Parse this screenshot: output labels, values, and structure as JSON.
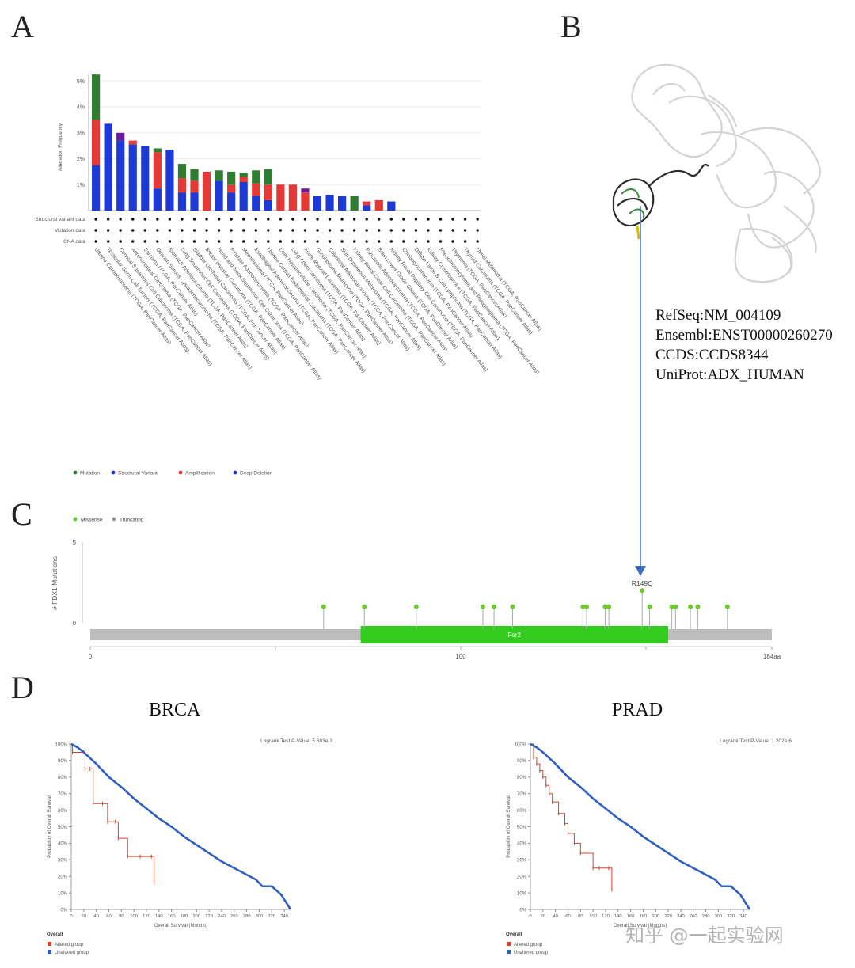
{
  "panels": {
    "a": "A",
    "b": "B",
    "c": "C",
    "d": "D"
  },
  "refs": {
    "refseq": "RefSeq:NM_004109",
    "ensembl": "Ensembl:ENST00000260270",
    "ccds": "CCDS:CCDS8344",
    "uniprot": "UniProt:ADX_HUMAN"
  },
  "colors": {
    "mutation": "#2e7d32",
    "structural": "#6a1b9a",
    "amplification": "#e53935",
    "deep_deletion": "#1e3ad6",
    "missense": "#6dcc2c",
    "domain": "#33cc1e",
    "altered": "#d9432a",
    "unaltered": "#2f5fc0"
  },
  "chart_data": [
    {
      "type": "bar",
      "ylabel": "Alteration Frequency",
      "ylim": [
        0,
        5.5
      ],
      "yticks": [
        "1%",
        "2%",
        "3%",
        "4%",
        "5%"
      ],
      "row_labels": [
        "Structural variant data",
        "Mutation data",
        "CNA data"
      ],
      "legend": [
        "Mutation",
        "Structural Variant",
        "Amplification",
        "Deep Deletion"
      ],
      "categories": [
        "Uterine Carcinosarcoma (TCGA, PanCancer Atlas)",
        "Testicular Germ Cell Tumors (TCGA, PanCancer Atlas)",
        "Cervical Squamous Cell Carcinoma (TCGA, PanCancer Atlas)",
        "Adrenocortical Carcinoma (TCGA, PanCancer Atlas)",
        "Sarcoma (TCGA, PanCancer Atlas)",
        "Ovarian Serous Cystadenocarcinoma (TCGA, PanCancer Atlas)",
        "Stomach Adenocarcinoma (TCGA, PanCancer Atlas)",
        "Lung Squamous Cell Carcinoma (TCGA, PanCancer Atlas)",
        "Bladder Urothelial Carcinoma (TCGA, PanCancer Atlas)",
        "Breast Invasive Carcinoma (TCGA, PanCancer Atlas)",
        "Head and Neck Squamous Cell Carcinoma (TCGA, PanCancer Atlas)",
        "Prostate Adenocarcinoma (TCGA, PanCancer Atlas)",
        "Mesothelioma (TCGA, PanCancer Atlas)",
        "Esophageal Adenocarcinoma (TCGA, PanCancer Atlas)",
        "Uterine Corpus Endometrial Carcinoma (TCGA, PanCancer Atlas)",
        "Liver Hepatocellular Carcinoma (TCGA, PanCancer Atlas)",
        "Lung Adenocarcinoma (TCGA, PanCancer Atlas)",
        "Acute Myeloid Leukemia (TCGA, PanCancer Atlas)",
        "Glioblastoma Multiforme (TCGA, PanCancer Atlas)",
        "Colorectal Adenocarcinoma (TCGA, PanCancer Atlas)",
        "Skin Cutaneous Melanoma (TCGA, PanCancer Atlas)",
        "Kidney Renal Clear Cell Carcinoma (TCGA, PanCancer Atlas)",
        "Pancreatic Adenocarcinoma (TCGA, PanCancer Atlas)",
        "Brain Lower Grade Glioma (TCGA, PanCancer Atlas)",
        "Kidney Renal Papillary Cell Carcinoma (TCGA, PanCancer Atlas)",
        "Cholangiocarcinoma (TCGA, PanCancer Atlas)",
        "Diffuse Large B-Cell Lymphoma (TCGA, PanCancer Atlas)",
        "Kidney Chromophobe (TCGA, PanCancer Atlas)",
        "Pheochromocytoma and Paraganglioma (TCGA, PanCancer Atlas)",
        "Thymoma (TCGA, PanCancer Atlas)",
        "Thyroid Carcinoma (TCGA, PanCancer Atlas)",
        "Uveal Melanoma (TCGA, PanCancer Atlas)"
      ],
      "series": [
        {
          "name": "Deep Deletion",
          "values": [
            1.75,
            3.35,
            2.7,
            2.55,
            2.5,
            0.85,
            2.35,
            0.7,
            0.7,
            0,
            1.15,
            0.7,
            1.1,
            0.55,
            0.4,
            0,
            0,
            0,
            0.55,
            0.6,
            0.55,
            0,
            0.2,
            0,
            0.35,
            0,
            0,
            0,
            0,
            0,
            0,
            0
          ]
        },
        {
          "name": "Amplification",
          "values": [
            1.75,
            0,
            0,
            0.15,
            0,
            1.4,
            0,
            0.55,
            0.45,
            1.5,
            0,
            0.3,
            0.2,
            0.5,
            0.6,
            1.0,
            1.0,
            0.7,
            0,
            0,
            0,
            0,
            0.15,
            0.4,
            0,
            0,
            0,
            0,
            0,
            0,
            0,
            0
          ]
        },
        {
          "name": "Structural Variant",
          "values": [
            0,
            0,
            0.3,
            0,
            0,
            0,
            0,
            0,
            0,
            0,
            0,
            0,
            0,
            0,
            0,
            0,
            0,
            0.15,
            0,
            0,
            0,
            0,
            0,
            0,
            0,
            0,
            0,
            0,
            0,
            0,
            0,
            0
          ]
        },
        {
          "name": "Mutation",
          "values": [
            1.75,
            0,
            0,
            0,
            0,
            0.15,
            0,
            0.55,
            0.45,
            0,
            0.4,
            0.5,
            0.15,
            0.5,
            0.6,
            0,
            0,
            0,
            0,
            0,
            0,
            0.55,
            0,
            0,
            0,
            0,
            0,
            0,
            0,
            0,
            0,
            0
          ]
        }
      ]
    },
    {
      "type": "scatter",
      "subtype": "lollipop",
      "ylabel": "# FDX1 Mutations",
      "ylim": [
        0,
        5
      ],
      "yticks": [
        0,
        5
      ],
      "xlim": [
        0,
        184
      ],
      "xticks": [
        "0",
        "100",
        "184aa"
      ],
      "legend": [
        "Missense",
        "Truncating"
      ],
      "domain": {
        "label": "Fer2",
        "start": 73,
        "end": 156
      },
      "annotation": "R149Q",
      "points": [
        {
          "x": 63,
          "y": 1
        },
        {
          "x": 74,
          "y": 1
        },
        {
          "x": 88,
          "y": 1
        },
        {
          "x": 106,
          "y": 1
        },
        {
          "x": 109,
          "y": 1
        },
        {
          "x": 114,
          "y": 1
        },
        {
          "x": 133,
          "y": 1
        },
        {
          "x": 134,
          "y": 1
        },
        {
          "x": 139,
          "y": 1
        },
        {
          "x": 140,
          "y": 1
        },
        {
          "x": 149,
          "y": 2
        },
        {
          "x": 151,
          "y": 1
        },
        {
          "x": 157,
          "y": 1
        },
        {
          "x": 158,
          "y": 1
        },
        {
          "x": 162,
          "y": 1
        },
        {
          "x": 164,
          "y": 1
        },
        {
          "x": 172,
          "y": 1
        }
      ]
    },
    {
      "type": "line",
      "subtype": "kaplan-meier",
      "title": "BRCA",
      "pvalue": "Logrank Test P-Value: 5.683e-3",
      "xlabel": "Overall Survival (Months)",
      "ylabel": "Probability of Overall Survival",
      "xticks": [
        0,
        20,
        40,
        60,
        80,
        100,
        120,
        140,
        160,
        180,
        200,
        220,
        240,
        260,
        280,
        300,
        320,
        340
      ],
      "yticks": [
        "0%",
        "10%",
        "20%",
        "30%",
        "40%",
        "50%",
        "60%",
        "70%",
        "80%",
        "90%",
        "100%"
      ],
      "xlim": [
        0,
        350
      ],
      "legend_title": "Overall",
      "series": [
        {
          "name": "Altered group",
          "x": [
            0,
            2,
            20,
            22,
            30,
            35,
            50,
            58,
            70,
            75,
            90,
            110,
            128,
            132
          ],
          "y": [
            100,
            95,
            95,
            85,
            85,
            64,
            64,
            53,
            53,
            43,
            32,
            32,
            32,
            16
          ]
        },
        {
          "name": "Unaltered group",
          "x": [
            0,
            10,
            20,
            40,
            60,
            80,
            100,
            120,
            140,
            160,
            180,
            200,
            220,
            240,
            260,
            280,
            295,
            305,
            320,
            335,
            340,
            350
          ],
          "y": [
            100,
            98,
            95,
            88,
            80,
            74,
            67,
            61,
            55,
            50,
            44,
            39,
            34,
            29,
            25,
            21,
            18,
            14,
            14,
            9,
            6,
            0
          ]
        }
      ]
    },
    {
      "type": "line",
      "subtype": "kaplan-meier",
      "title": "PRAD",
      "pvalue": "Logrank Test P-Value: 1.202e-6",
      "xlabel": "Overall Survival (Months)",
      "ylabel": "Probability of Overall Survival",
      "xticks": [
        0,
        20,
        40,
        60,
        80,
        100,
        120,
        140,
        160,
        180,
        200,
        220,
        240,
        260,
        280,
        300,
        320,
        340
      ],
      "yticks": [
        "0%",
        "10%",
        "20%",
        "30%",
        "40%",
        "50%",
        "60%",
        "70%",
        "80%",
        "90%",
        "100%"
      ],
      "xlim": [
        0,
        350
      ],
      "legend_title": "Overall",
      "series": [
        {
          "name": "Altered group",
          "x": [
            0,
            5,
            10,
            15,
            20,
            25,
            30,
            35,
            45,
            55,
            60,
            70,
            80,
            100,
            110,
            125,
            130
          ],
          "y": [
            100,
            92,
            88,
            84,
            80,
            75,
            70,
            65,
            58,
            52,
            46,
            40,
            34,
            25,
            25,
            25,
            12
          ]
        },
        {
          "name": "Unaltered group",
          "x": [
            0,
            10,
            20,
            40,
            60,
            80,
            100,
            120,
            140,
            160,
            180,
            200,
            220,
            240,
            260,
            280,
            295,
            305,
            320,
            335,
            340,
            350
          ],
          "y": [
            100,
            98,
            95,
            88,
            80,
            74,
            67,
            61,
            55,
            50,
            44,
            39,
            34,
            29,
            25,
            21,
            18,
            14,
            14,
            9,
            6,
            0
          ]
        }
      ]
    }
  ]
}
